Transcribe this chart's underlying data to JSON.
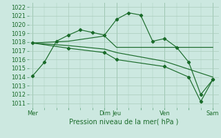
{
  "background_color": "#cce8e0",
  "grid_color": "#aaccbb",
  "line_color": "#1a6b2a",
  "title": "Pression niveau de la mer( hPa )",
  "ylim": [
    1010.5,
    1022.5
  ],
  "yticks": [
    1011,
    1012,
    1013,
    1014,
    1015,
    1016,
    1017,
    1018,
    1019,
    1020,
    1021,
    1022
  ],
  "xtick_labels": [
    "Mer",
    "",
    "Dim",
    "Jeu",
    "",
    "Ven",
    "",
    "Sam"
  ],
  "xtick_positions": [
    0,
    3,
    6,
    7,
    9,
    11,
    13,
    15
  ],
  "xlim": [
    -0.3,
    15.5
  ],
  "line1_x": [
    0,
    1,
    2,
    3,
    4,
    5,
    6,
    7,
    8,
    9,
    10,
    11,
    12,
    13,
    14,
    15
  ],
  "line1_y": [
    1014.1,
    1015.7,
    1018.1,
    1018.8,
    1019.4,
    1019.1,
    1018.8,
    1020.6,
    1021.35,
    1021.1,
    1018.1,
    1018.4,
    1017.4,
    1015.7,
    1012.0,
    1013.7
  ],
  "line2_x": [
    0,
    3,
    6,
    7,
    11,
    15
  ],
  "line2_y": [
    1017.9,
    1018.1,
    1018.7,
    1017.4,
    1017.4,
    1017.4
  ],
  "line3_x": [
    0,
    3,
    6,
    7,
    11,
    15
  ],
  "line3_y": [
    1017.9,
    1017.6,
    1017.2,
    1016.8,
    1015.8,
    1014.0
  ],
  "line4_x": [
    0,
    3,
    6,
    7,
    11,
    13,
    14,
    15
  ],
  "line4_y": [
    1017.9,
    1017.3,
    1016.8,
    1016.0,
    1015.2,
    1014.0,
    1011.2,
    1013.7
  ],
  "vline_positions": [
    0,
    6,
    7,
    11,
    15
  ]
}
